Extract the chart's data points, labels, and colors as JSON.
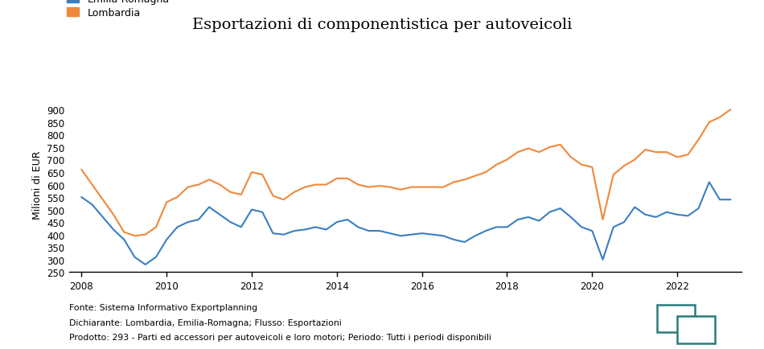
{
  "title": "Esportazioni di componentistica per autoveicoli",
  "ylabel": "Milioni di EUR",
  "legend_emilia": "Emilia-Romagna",
  "legend_lombardia": "Lombardia",
  "color_emilia": "#3a7fc1",
  "color_lombardia": "#f0883a",
  "footnote_lines": [
    "Fonte: Sistema Informativo Exportplanning",
    "Dichiarante: Lombardia, Emilia-Romagna; Flusso: Esportazioni",
    "Prodotto: 293 - Parti ed accessori per autoveicoli e loro motori; Periodo: Tutti i periodi disponibili"
  ],
  "ylim": [
    250,
    950
  ],
  "yticks": [
    250,
    300,
    350,
    400,
    450,
    500,
    550,
    600,
    650,
    700,
    750,
    800,
    850,
    900
  ],
  "xticks": [
    2008,
    2010,
    2012,
    2014,
    2016,
    2018,
    2020,
    2022
  ],
  "xlim": [
    2007.7,
    2023.5
  ],
  "quarters": [
    2008.0,
    2008.25,
    2008.5,
    2008.75,
    2009.0,
    2009.25,
    2009.5,
    2009.75,
    2010.0,
    2010.25,
    2010.5,
    2010.75,
    2011.0,
    2011.25,
    2011.5,
    2011.75,
    2012.0,
    2012.25,
    2012.5,
    2012.75,
    2013.0,
    2013.25,
    2013.5,
    2013.75,
    2014.0,
    2014.25,
    2014.5,
    2014.75,
    2015.0,
    2015.25,
    2015.5,
    2015.75,
    2016.0,
    2016.25,
    2016.5,
    2016.75,
    2017.0,
    2017.25,
    2017.5,
    2017.75,
    2018.0,
    2018.25,
    2018.5,
    2018.75,
    2019.0,
    2019.25,
    2019.5,
    2019.75,
    2020.0,
    2020.25,
    2020.5,
    2020.75,
    2021.0,
    2021.25,
    2021.5,
    2021.75,
    2022.0,
    2022.25,
    2022.5,
    2022.75,
    2023.0,
    2023.25
  ],
  "emilia": [
    550,
    520,
    470,
    420,
    380,
    310,
    280,
    310,
    380,
    430,
    450,
    460,
    510,
    480,
    450,
    430,
    500,
    490,
    405,
    400,
    415,
    420,
    430,
    420,
    450,
    460,
    430,
    415,
    415,
    405,
    395,
    400,
    405,
    400,
    395,
    380,
    370,
    395,
    415,
    430,
    430,
    460,
    470,
    455,
    490,
    505,
    470,
    430,
    415,
    300,
    430,
    450,
    510,
    480,
    470,
    490,
    480,
    475,
    505,
    610,
    540,
    540
  ],
  "lombardia": [
    660,
    600,
    540,
    480,
    410,
    395,
    400,
    430,
    530,
    550,
    590,
    600,
    620,
    600,
    570,
    560,
    650,
    640,
    555,
    540,
    570,
    590,
    600,
    600,
    625,
    625,
    600,
    590,
    595,
    590,
    580,
    590,
    590,
    590,
    590,
    610,
    620,
    635,
    650,
    680,
    700,
    730,
    745,
    730,
    750,
    760,
    710,
    680,
    670,
    460,
    640,
    675,
    700,
    740,
    730,
    730,
    710,
    720,
    780,
    850,
    870,
    900
  ],
  "icon_color": "#2a7a7a"
}
